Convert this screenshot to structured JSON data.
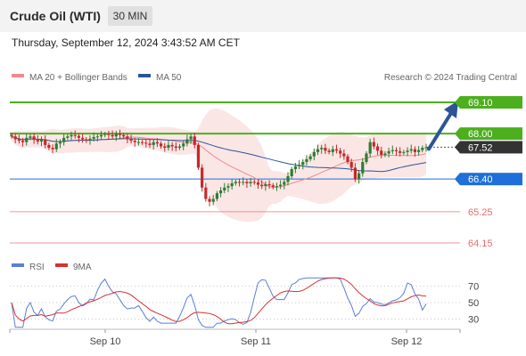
{
  "header": {
    "title": "Crude Oil (WTI)",
    "interval": "30 MIN"
  },
  "timestamp": "Thursday, September 12, 2024 3:43:52 AM CET",
  "legend": {
    "ma20": "MA 20 + Bollinger Bands",
    "ma50": "MA 50",
    "credit": "Research © 2024 Trading Central",
    "rsi": "RSI",
    "nine_ma": "9MA"
  },
  "colors": {
    "ma20": "#f08a8a",
    "ma50": "#2b5596",
    "resistance": "#4caf1e",
    "support": "#1e6fd9",
    "weak": "#e86b6b",
    "current": "#333333",
    "band": "#fbe3e3",
    "rsi": "#5a7fd6",
    "nine_ma": "#d93030"
  },
  "chart_data": {
    "type": "candlestick",
    "ylim": [
      63.9,
      69.9
    ],
    "x_ticks": [
      "Sep 10",
      "Sep 11",
      "Sep 12"
    ],
    "levels": [
      {
        "value": "69.10",
        "kind": "resistance"
      },
      {
        "value": "68.00",
        "kind": "resistance"
      },
      {
        "value": "67.52",
        "kind": "current"
      },
      {
        "value": "66.40",
        "kind": "support"
      },
      {
        "value": "65.25",
        "kind": "weak"
      },
      {
        "value": "64.15",
        "kind": "weak"
      }
    ],
    "rsi_axis": [
      70,
      50,
      30
    ],
    "closes": [
      67.9,
      67.8,
      67.75,
      67.7,
      67.85,
      67.9,
      67.78,
      67.72,
      67.8,
      67.6,
      67.5,
      67.45,
      67.65,
      67.7,
      67.85,
      67.9,
      67.95,
      67.92,
      67.85,
      67.8,
      67.75,
      67.82,
      67.88,
      67.9,
      67.95,
      67.98,
      67.95,
      67.9,
      68.0,
      67.95,
      67.9,
      67.8,
      67.75,
      67.7,
      67.7,
      67.68,
      67.65,
      67.6,
      67.7,
      67.65,
      67.55,
      67.5,
      67.6,
      67.55,
      67.5,
      67.55,
      67.65,
      67.8,
      67.9,
      67.6,
      66.8,
      66.1,
      65.7,
      65.6,
      65.7,
      65.9,
      66.0,
      66.1,
      66.15,
      66.25,
      66.3,
      66.28,
      66.3,
      66.25,
      66.3,
      66.28,
      66.2,
      66.15,
      66.22,
      66.18,
      66.12,
      66.15,
      66.2,
      66.3,
      66.5,
      66.75,
      66.85,
      66.9,
      67.0,
      67.1,
      67.2,
      67.35,
      67.45,
      67.5,
      67.4,
      67.35,
      67.45,
      67.4,
      67.3,
      67.2,
      67.0,
      66.8,
      66.4,
      66.6,
      67.0,
      67.3,
      67.7,
      67.55,
      67.4,
      67.25,
      67.3,
      67.38,
      67.42,
      67.38,
      67.32,
      67.35,
      67.4,
      67.45,
      67.35,
      67.42,
      67.5,
      67.52
    ],
    "forecast_target": 69.1
  }
}
